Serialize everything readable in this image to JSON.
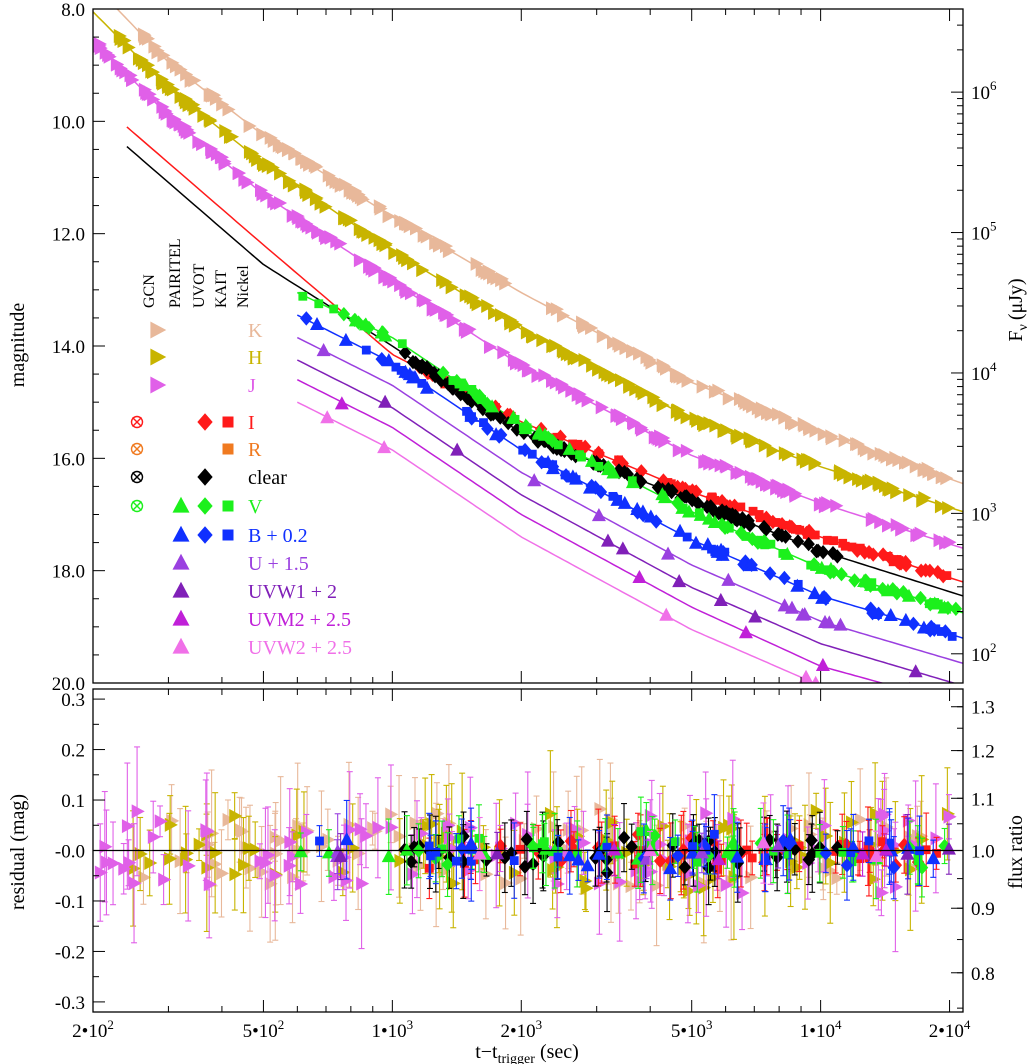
{
  "chart_data": [
    {
      "type": "line",
      "panel": "top",
      "title": "",
      "xlabel": "t−t",
      "xlabel_sub": "trigger",
      "xlabel_unit": "(sec)",
      "ylabel": "magnitude",
      "ylabel_right": "F",
      "ylabel_right_sub": "ν",
      "ylabel_right_unit": "(μJy)",
      "xscale": "log",
      "xlim": [
        200,
        21500
      ],
      "ylim": [
        20.0,
        8.0
      ],
      "yticks": [
        {
          "value": 8.0,
          "label": "8.0"
        },
        {
          "value": 10.0,
          "label": "10.0"
        },
        {
          "value": 12.0,
          "label": "12.0"
        },
        {
          "value": 14.0,
          "label": "14.0"
        },
        {
          "value": 16.0,
          "label": "16.0"
        },
        {
          "value": 18.0,
          "label": "18.0"
        },
        {
          "value": 20.0,
          "label": "20.0"
        }
      ],
      "right_ticks": [
        {
          "mag": 9.48,
          "base": "10",
          "exp": "6"
        },
        {
          "mag": 11.98,
          "base": "10",
          "exp": "5"
        },
        {
          "mag": 14.48,
          "base": "10",
          "exp": "4"
        },
        {
          "mag": 16.98,
          "base": "10",
          "exp": "3"
        },
        {
          "mag": 19.48,
          "base": "10",
          "exp": "2"
        }
      ],
      "instruments": [
        "GCN",
        "PAIRITEL",
        "UVOT",
        "KAIT",
        "Nickel"
      ],
      "legend": [
        {
          "label": "K",
          "color": "#e8b89a",
          "markers": [
            "tri-right-filled"
          ]
        },
        {
          "label": "H",
          "color": "#c8b400",
          "markers": [
            "tri-right-filled"
          ]
        },
        {
          "label": "J",
          "color": "#e060e8",
          "markers": [
            "tri-right-filled"
          ]
        },
        {
          "label": "I",
          "color": "#ff1a1a",
          "markers": [
            "x-circle",
            "diamond",
            "square"
          ]
        },
        {
          "label": "R",
          "color": "#f07a20",
          "markers": [
            "x-circle",
            "square"
          ]
        },
        {
          "label": "clear",
          "color": "#000000",
          "markers": [
            "x-circle",
            "diamond"
          ]
        },
        {
          "label": "V",
          "color": "#1cf01c",
          "markers": [
            "x-circle",
            "triangle",
            "diamond",
            "square"
          ]
        },
        {
          "label": "B + 0.2",
          "color": "#1030ff",
          "markers": [
            "triangle",
            "diamond",
            "square"
          ]
        },
        {
          "label": "U + 1.5",
          "color": "#9a40e0",
          "markers": [
            "triangle"
          ]
        },
        {
          "label": "UVW1 + 2",
          "color": "#8020b8",
          "markers": [
            "triangle"
          ]
        },
        {
          "label": "UVM2 + 2.5",
          "color": "#c020d8",
          "markers": [
            "triangle"
          ]
        },
        {
          "label": "UVW2 + 2.5",
          "color": "#f070e8",
          "markers": [
            "triangle"
          ]
        }
      ],
      "series": [
        {
          "name": "K",
          "color": "#e8b89a",
          "x": [
            200,
            300,
            500,
            1000,
            2000,
            5000,
            10000,
            21500
          ],
          "y": [
            7.55,
            8.95,
            10.25,
            11.7,
            13.05,
            14.65,
            15.55,
            16.45
          ]
        },
        {
          "name": "H",
          "color": "#c8b400",
          "x": [
            200,
            300,
            500,
            1000,
            2000,
            5000,
            10000,
            21500
          ],
          "y": [
            8.05,
            9.4,
            10.75,
            12.3,
            13.7,
            15.3,
            16.15,
            16.95
          ]
        },
        {
          "name": "J",
          "color": "#e060e8",
          "x": [
            200,
            300,
            500,
            1000,
            2000,
            5000,
            10000,
            21500
          ],
          "y": [
            8.55,
            9.9,
            11.3,
            12.85,
            14.35,
            15.95,
            16.8,
            17.6
          ]
        },
        {
          "name": "I",
          "color": "#ff1a1a",
          "x": [
            240,
            500,
            1000,
            2000,
            5000,
            10000,
            21500
          ],
          "y": [
            10.1,
            12.2,
            14.15,
            15.35,
            16.6,
            17.4,
            18.2
          ]
        },
        {
          "name": "clear",
          "color": "#000000",
          "x": [
            240,
            500,
            1000,
            2000,
            5000,
            10000,
            21500
          ],
          "y": [
            10.45,
            12.55,
            14.0,
            15.55,
            16.75,
            17.65,
            18.45
          ]
        },
        {
          "name": "V",
          "color": "#1cf01c",
          "x": [
            600,
            1000,
            2000,
            5000,
            10000,
            21500
          ],
          "y": [
            13.05,
            13.85,
            15.4,
            16.95,
            17.95,
            18.75
          ]
        },
        {
          "name": "B + 0.2",
          "color": "#1030ff",
          "x": [
            600,
            1000,
            2000,
            5000,
            10000,
            21500
          ],
          "y": [
            13.45,
            14.3,
            15.85,
            17.45,
            18.45,
            19.2
          ]
        },
        {
          "name": "U + 1.5",
          "color": "#9a40e0",
          "x": [
            600,
            1000,
            2000,
            5000,
            10000,
            21500
          ],
          "y": [
            13.85,
            14.7,
            16.25,
            17.9,
            18.9,
            19.65
          ]
        },
        {
          "name": "UVW1 + 2",
          "color": "#8020b8",
          "x": [
            600,
            1000,
            2000,
            5000,
            10000,
            21500
          ],
          "y": [
            14.25,
            15.1,
            16.65,
            18.3,
            19.3,
            20.05
          ]
        },
        {
          "name": "UVM2 + 2.5",
          "color": "#c020d8",
          "x": [
            600,
            1000,
            2000,
            5000,
            10000,
            21500
          ],
          "y": [
            14.6,
            15.45,
            17.0,
            18.65,
            19.7,
            20.4
          ]
        },
        {
          "name": "UVW2 + 2.5",
          "color": "#f070e8",
          "x": [
            600,
            1000,
            2000,
            5000,
            10000,
            21500
          ],
          "y": [
            15.0,
            15.85,
            17.4,
            19.05,
            20.05,
            20.8
          ]
        }
      ]
    },
    {
      "type": "scatter",
      "panel": "bottom",
      "xlabel": "t−t",
      "xlabel_sub": "trigger",
      "xlabel_unit": "(sec)",
      "ylabel": "residual (mag)",
      "ylabel_right": "flux ratio",
      "xscale": "log",
      "xlim": [
        200,
        21500
      ],
      "ylim": [
        -0.32,
        0.32
      ],
      "xticks": [
        {
          "value": 200,
          "base": "2•10",
          "exp": "2"
        },
        {
          "value": 500,
          "base": "5•10",
          "exp": "2"
        },
        {
          "value": 1000,
          "base": "1•10",
          "exp": "3"
        },
        {
          "value": 2000,
          "base": "2•10",
          "exp": "3"
        },
        {
          "value": 5000,
          "base": "5•10",
          "exp": "3"
        },
        {
          "value": 10000,
          "base": "1•10",
          "exp": "4"
        },
        {
          "value": 20000,
          "base": "2•10",
          "exp": "4"
        }
      ],
      "yticks": [
        {
          "value": 0.3,
          "label": "0.3"
        },
        {
          "value": 0.2,
          "label": "0.2"
        },
        {
          "value": 0.1,
          "label": "0.1"
        },
        {
          "value": 0.0,
          "label": "-0.0"
        },
        {
          "value": -0.1,
          "label": "-0.1"
        },
        {
          "value": -0.2,
          "label": "-0.2"
        },
        {
          "value": -0.3,
          "label": "-0.3"
        }
      ],
      "right_ticks": [
        {
          "ratio": 1.3,
          "label": "1.3"
        },
        {
          "ratio": 1.2,
          "label": "1.2"
        },
        {
          "ratio": 1.1,
          "label": "1.1"
        },
        {
          "ratio": 1.0,
          "label": "1.0"
        },
        {
          "ratio": 0.9,
          "label": "0.9"
        },
        {
          "ratio": 0.8,
          "label": "0.8"
        }
      ],
      "zero_line": 0.0
    }
  ]
}
